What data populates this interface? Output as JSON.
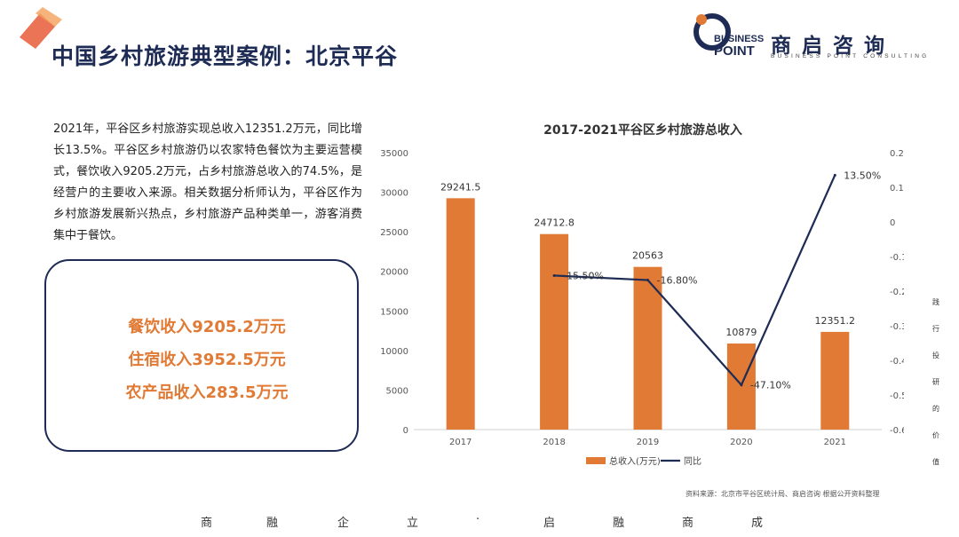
{
  "page": {
    "title": "中国乡村旅游典型案例：北京平谷"
  },
  "logo": {
    "en_line1": "BUSINESS",
    "en_line2": "POINT",
    "cn": "商启咨询",
    "subtitle": "BUSINESS POINT CONSULTING"
  },
  "intro": {
    "text": "2021年，平谷区乡村旅游实现总收入12351.2万元，同比增长13.5%。平谷区乡村旅游仍以农家特色餐饮为主要运营模式，餐饮收入9205.2万元，占乡村旅游总收入的74.5%，是经营户的主要收入来源。相关数据分析师认为，平谷区作为乡村旅游发展新兴热点，乡村旅游产品种类单一，游客消费集中于餐饮。"
  },
  "highlights": [
    "餐饮收入9205.2万元",
    "住宿收入3952.5万元",
    "农产品收入283.5万元"
  ],
  "chart_data": {
    "type": "bar",
    "title": "2017-2021平谷区乡村旅游总收入",
    "categories": [
      "2017",
      "2018",
      "2019",
      "2020",
      "2021"
    ],
    "series": [
      {
        "name": "总收入(万元)",
        "type": "bar",
        "axis": "left",
        "values": [
          29241.5,
          24712.8,
          20563,
          10879,
          12351.2
        ],
        "labels": [
          "29241.5",
          "24712.8",
          "20563",
          "10879",
          "12351.2"
        ]
      },
      {
        "name": "同比",
        "type": "line",
        "axis": "right",
        "values": [
          null,
          -0.155,
          -0.168,
          -0.471,
          0.135
        ],
        "labels": [
          "",
          "-15.50%",
          "-16.80%",
          "-47.10%",
          "13.50%"
        ]
      }
    ],
    "y_left": {
      "min": 0,
      "max": 35000,
      "ticks": [
        "0",
        "5000",
        "10000",
        "15000",
        "20000",
        "25000",
        "30000",
        "35000"
      ]
    },
    "y_right": {
      "min": -0.6,
      "max": 0.2,
      "ticks": [
        "-0.6",
        "-0.5",
        "-0.4",
        "-0.3",
        "-0.2",
        "-0.1",
        "0",
        "0.1",
        "0.2"
      ]
    },
    "legend_position": "bottom",
    "grid": false
  },
  "source": "资料来源：北京市平谷区统计局、商启咨询 根据公开资料整理",
  "side_text": [
    "践",
    "行",
    "投",
    "研",
    "的",
    "价",
    "值"
  ],
  "slogan": [
    "商",
    "融",
    "企",
    "立",
    "·",
    "启",
    "融",
    "商",
    "成"
  ],
  "colors": {
    "navy": "#1d2b55",
    "orange": "#e07a35",
    "bar": "#e07a35",
    "line": "#1d2b55"
  }
}
